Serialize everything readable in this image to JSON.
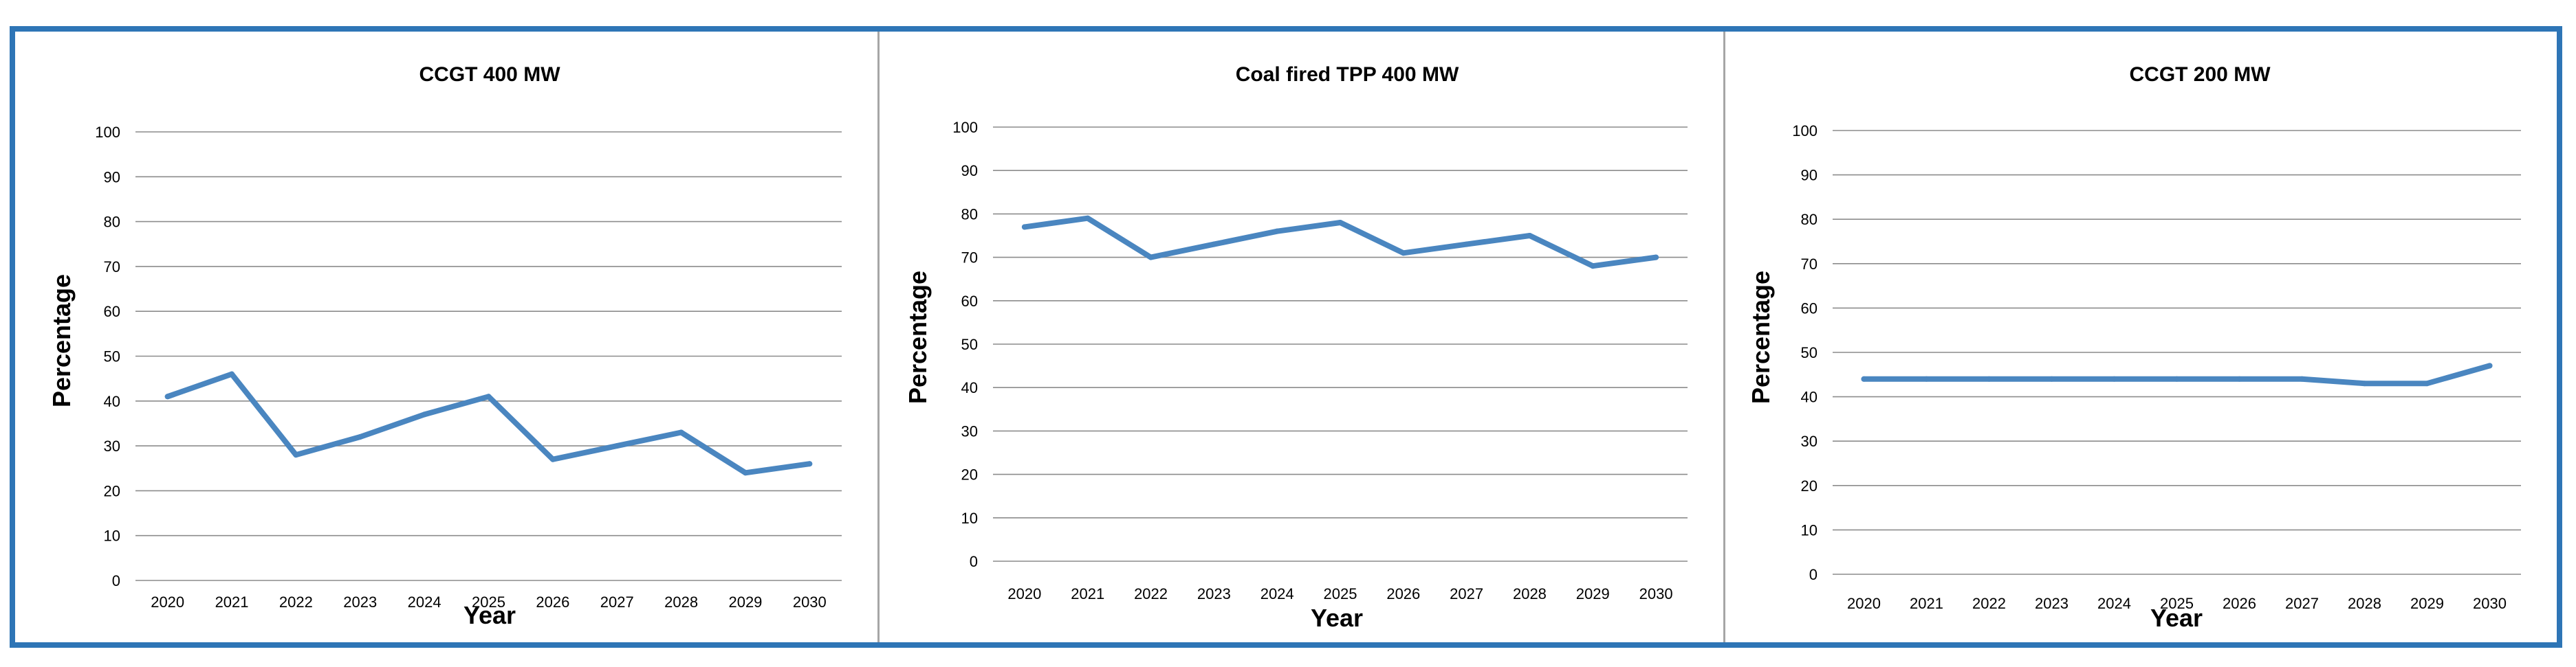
{
  "colors": {
    "frame": "#2e75b6",
    "line": "#4a86c0",
    "grid": "#8c8c8c"
  },
  "chart_data": [
    {
      "type": "line",
      "title": "CCGT 400 MW",
      "xlabel": "Year",
      "ylabel": "Percentage",
      "categories": [
        "2020",
        "2021",
        "2022",
        "2023",
        "2024",
        "2025",
        "2026",
        "2027",
        "2028",
        "2029",
        "2030"
      ],
      "yticks": [
        "0",
        "10",
        "20",
        "30",
        "40",
        "50",
        "60",
        "70",
        "80",
        "90",
        "100"
      ],
      "ylim": [
        0,
        100
      ],
      "grid": true,
      "series": [
        {
          "name": "CCGT 400 MW",
          "values": [
            41,
            46,
            28,
            32,
            37,
            41,
            27,
            30,
            33,
            24,
            26
          ]
        }
      ]
    },
    {
      "type": "line",
      "title": "Coal fired TPP 400 MW",
      "xlabel": "Year",
      "ylabel": "Percentage",
      "categories": [
        "2020",
        "2021",
        "2022",
        "2023",
        "2024",
        "2025",
        "2026",
        "2027",
        "2028",
        "2029",
        "2030"
      ],
      "yticks": [
        "0",
        "10",
        "20",
        "30",
        "40",
        "50",
        "60",
        "70",
        "80",
        "90",
        "100"
      ],
      "ylim": [
        0,
        100
      ],
      "grid": true,
      "series": [
        {
          "name": "Coal fired TPP 400 MW",
          "values": [
            77,
            79,
            70,
            73,
            76,
            78,
            71,
            73,
            75,
            68,
            70
          ]
        }
      ]
    },
    {
      "type": "line",
      "title": "CCGT 200 MW",
      "xlabel": "Year",
      "ylabel": "Percentage",
      "categories": [
        "2020",
        "2021",
        "2022",
        "2023",
        "2024",
        "2025",
        "2026",
        "2027",
        "2028",
        "2029",
        "2030"
      ],
      "yticks": [
        "0",
        "10",
        "20",
        "30",
        "40",
        "50",
        "60",
        "70",
        "80",
        "90",
        "100"
      ],
      "ylim": [
        0,
        100
      ],
      "grid": true,
      "series": [
        {
          "name": "CCGT 200 MW",
          "values": [
            44,
            44,
            44,
            44,
            44,
            44,
            44,
            44,
            43,
            43,
            47
          ]
        }
      ]
    }
  ]
}
